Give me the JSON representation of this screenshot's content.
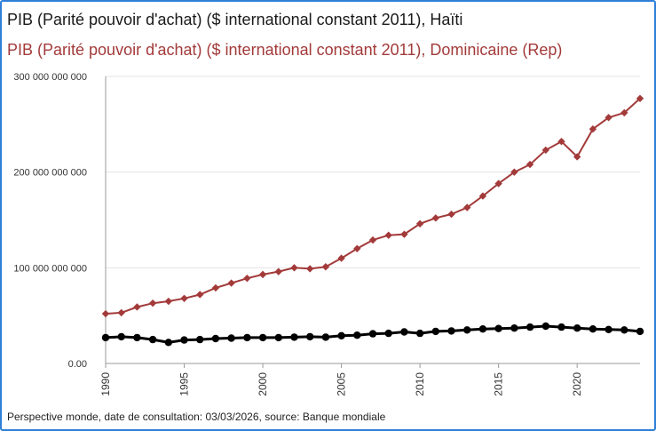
{
  "chart_data": {
    "type": "line",
    "title": "",
    "xlabel": "",
    "ylabel": "",
    "x": [
      1990,
      1991,
      1992,
      1993,
      1994,
      1995,
      1996,
      1997,
      1998,
      1999,
      2000,
      2001,
      2002,
      2003,
      2004,
      2005,
      2006,
      2007,
      2008,
      2009,
      2010,
      2011,
      2012,
      2013,
      2014,
      2015,
      2016,
      2017,
      2018,
      2019,
      2020,
      2021,
      2022,
      2023,
      2024
    ],
    "xticks": [
      "1990",
      "1995",
      "2000",
      "2005",
      "2010",
      "2015",
      "2020"
    ],
    "yticks": [
      "0.00",
      "100 000 000 000",
      "200 000 000 000",
      "300 000 000 000"
    ],
    "ylim": [
      0,
      300000000000
    ],
    "xlim": [
      1990,
      2024
    ],
    "series": [
      {
        "name": "PIB (Parité pouvoir d'achat) ($ international constant 2011), Haïti",
        "color": "#000000",
        "marker": "circle",
        "values": [
          27000000000,
          28000000000,
          27000000000,
          25000000000,
          22000000000,
          24500000000,
          25000000000,
          26000000000,
          26500000000,
          27000000000,
          27000000000,
          27000000000,
          27500000000,
          28000000000,
          27500000000,
          29000000000,
          29500000000,
          31000000000,
          31500000000,
          33000000000,
          31500000000,
          33500000000,
          34000000000,
          35000000000,
          36000000000,
          36500000000,
          37000000000,
          38000000000,
          39000000000,
          38000000000,
          37000000000,
          36000000000,
          35500000000,
          35000000000,
          33500000000
        ]
      },
      {
        "name": "PIB (Parité pouvoir d'achat) ($ international constant 2011), Dominicaine (Rep)",
        "color": "#a33a3a",
        "marker": "diamond",
        "values": [
          52000000000,
          53000000000,
          59000000000,
          63000000000,
          65000000000,
          68000000000,
          72000000000,
          79000000000,
          84000000000,
          89000000000,
          93000000000,
          96000000000,
          100000000000,
          99000000000,
          101000000000,
          110000000000,
          120000000000,
          129000000000,
          134000000000,
          135000000000,
          146000000000,
          152000000000,
          156000000000,
          163000000000,
          175000000000,
          188000000000,
          200000000000,
          208000000000,
          223000000000,
          232000000000,
          216000000000,
          245000000000,
          257000000000,
          262000000000,
          277000000000
        ]
      }
    ]
  },
  "footer": {
    "source_text": "Perspective monde, date de consultation: 03/03/2026, source: Banque mondiale"
  }
}
